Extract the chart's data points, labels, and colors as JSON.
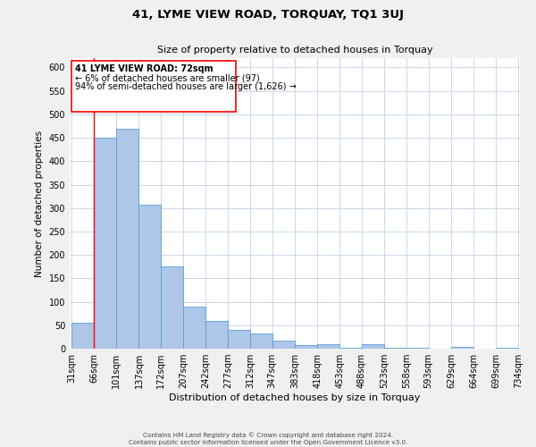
{
  "title": "41, LYME VIEW ROAD, TORQUAY, TQ1 3UJ",
  "subtitle": "Size of property relative to detached houses in Torquay",
  "xlabel": "Distribution of detached houses by size in Torquay",
  "ylabel": "Number of detached properties",
  "bin_edges": [
    31,
    66,
    101,
    137,
    172,
    207,
    242,
    277,
    312,
    347,
    383,
    418,
    453,
    488,
    523,
    558,
    593,
    629,
    664,
    699,
    734
  ],
  "bin_counts": [
    55,
    450,
    470,
    308,
    175,
    90,
    60,
    40,
    33,
    17,
    7,
    9,
    2,
    9,
    1,
    1,
    0,
    3,
    0,
    2
  ],
  "tick_labels": [
    "31sqm",
    "66sqm",
    "101sqm",
    "137sqm",
    "172sqm",
    "207sqm",
    "242sqm",
    "277sqm",
    "312sqm",
    "347sqm",
    "383sqm",
    "418sqm",
    "453sqm",
    "488sqm",
    "523sqm",
    "558sqm",
    "593sqm",
    "629sqm",
    "664sqm",
    "699sqm",
    "734sqm"
  ],
  "bar_color": "#aec6e8",
  "bar_edge_color": "#5a9fd4",
  "red_line_x": 66,
  "ylim": [
    0,
    620
  ],
  "yticks": [
    0,
    50,
    100,
    150,
    200,
    250,
    300,
    350,
    400,
    450,
    500,
    550,
    600
  ],
  "annotation_line1": "41 LYME VIEW ROAD: 72sqm",
  "annotation_line2": "← 6% of detached houses are smaller (97)",
  "annotation_line3": "94% of semi-detached houses are larger (1,626) →",
  "footer_line1": "Contains HM Land Registry data © Crown copyright and database right 2024.",
  "footer_line2": "Contains public sector information licensed under the Open Government Licence v3.0.",
  "background_color": "#f0f0f0",
  "plot_bg_color": "#ffffff",
  "grid_color": "#c8d8e8"
}
